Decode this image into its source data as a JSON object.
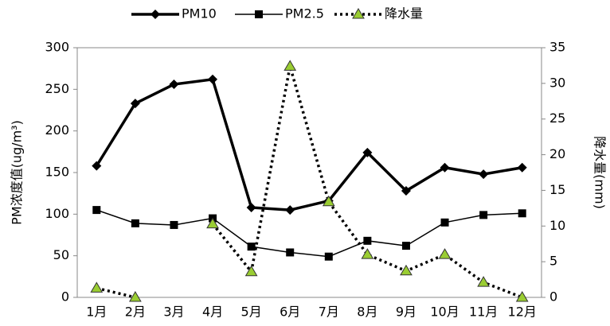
{
  "chart_data": {
    "type": "line",
    "categories": [
      "1月",
      "2月",
      "3月",
      "4月",
      "5月",
      "6月",
      "7月",
      "8月",
      "9月",
      "10月",
      "11月",
      "12月"
    ],
    "ylabel": "PM浓度值(ug/m³)",
    "y2label": "降水量(mm)",
    "ylim": [
      0,
      300
    ],
    "yticks": [
      0,
      50,
      100,
      150,
      200,
      250,
      300
    ],
    "y2lim": [
      0,
      35
    ],
    "y2ticks": [
      0,
      5,
      10,
      15,
      20,
      25,
      30,
      35
    ],
    "legend": "top",
    "series": [
      {
        "name": "PM10",
        "color": "#000000",
        "marker": "diamond",
        "dash": "solid",
        "values": [
          158,
          233,
          256,
          262,
          108,
          105,
          116,
          174,
          128,
          156,
          148,
          156
        ]
      },
      {
        "name": "PM2.5",
        "color": "#000000",
        "marker": "square",
        "dash": "thin",
        "values": [
          105,
          89,
          87,
          95,
          61,
          54,
          49,
          68,
          62,
          90,
          99,
          101
        ]
      },
      {
        "name": "降水量",
        "color": "#9acd32",
        "marker": "triangle",
        "dash": "dotted",
        "axis": "y2",
        "values": [
          1.3,
          0,
          null,
          10.3,
          3.6,
          32.4,
          13.4,
          6,
          3.7,
          6,
          2.1,
          0
        ]
      }
    ]
  }
}
